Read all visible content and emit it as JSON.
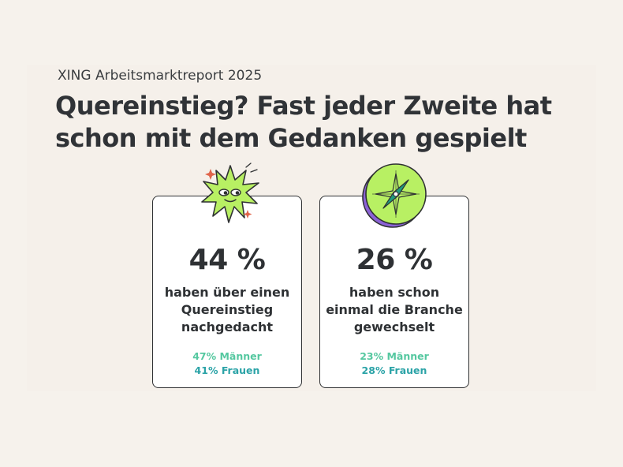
{
  "report_label": "XING Arbeitsmarktreport 2025",
  "headline": {
    "line1": "Quereinstieg? Fast jeder Zweite hat",
    "line2": "schon mit dem Gedanken gespielt"
  },
  "cards": [
    {
      "stat": "44 %",
      "desc_lines": [
        "haben über einen",
        "Quereinstieg",
        "nachgedacht"
      ],
      "men": "47% Männer",
      "women": "41% Frauen",
      "icon": "sparkly-star-face-icon"
    },
    {
      "stat": "26 %",
      "desc_lines": [
        "haben schon",
        "einmal die Branche",
        "gewechselt"
      ],
      "men": "23% Männer",
      "women": "28% Frauen",
      "icon": "compass-icon"
    }
  ],
  "colors": {
    "background": "#f6f2ec",
    "men": "#55c8a0",
    "women": "#2ba3a7",
    "illustration_green": "#b8f063",
    "compass_needle": "#1f9c7f",
    "compass_shadow": "#8b62d6"
  }
}
